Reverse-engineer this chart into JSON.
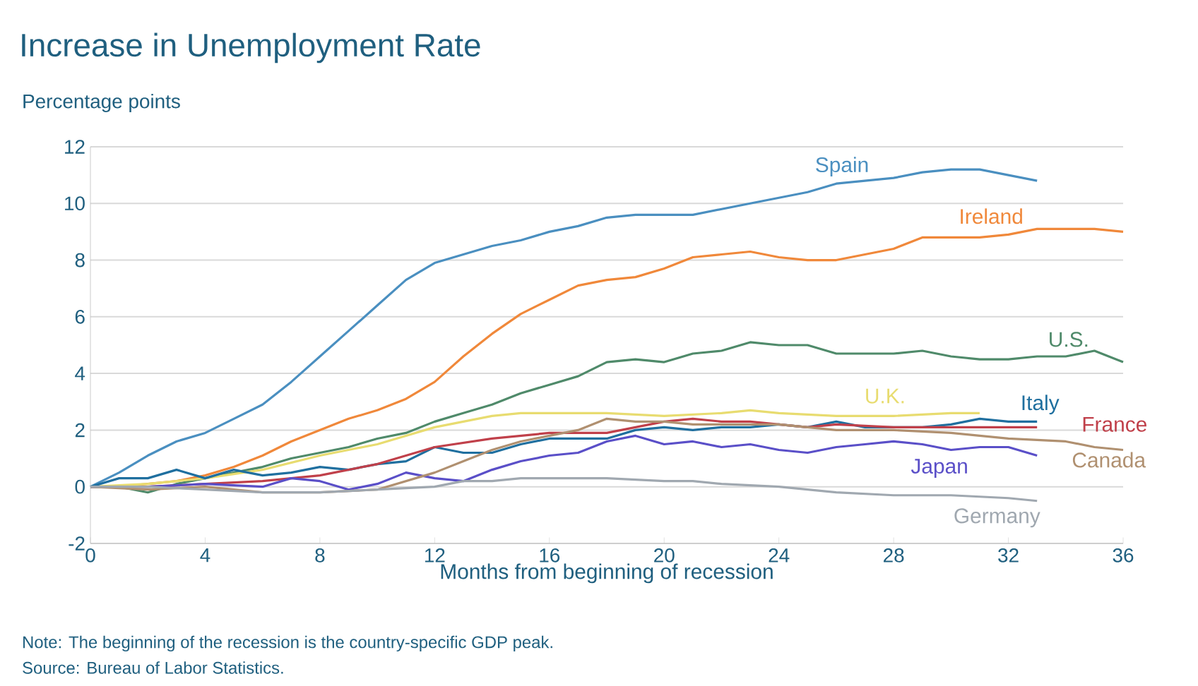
{
  "chart_data": {
    "type": "line",
    "title": "Increase in Unemployment Rate",
    "ylabel": "Percentage points",
    "xlabel": "Months from beginning of recession",
    "annotations": [
      "Note: The beginning of the recession is the country-specific GDP peak.",
      "Source: Bureau of Labor Statistics."
    ],
    "xlim": [
      0,
      36
    ],
    "xticks": [
      0,
      4,
      8,
      12,
      16,
      20,
      24,
      28,
      32,
      36
    ],
    "ylim": [
      -2,
      12
    ],
    "yticks": [
      -2,
      0,
      2,
      4,
      6,
      8,
      10,
      12
    ],
    "grid": "y",
    "marker": "none",
    "line_style": "solid",
    "series": [
      {
        "name": "Spain",
        "color": "#4a8fc0",
        "x": [
          0,
          1,
          2,
          3,
          4,
          5,
          6,
          7,
          8,
          9,
          10,
          11,
          12,
          13,
          14,
          15,
          16,
          17,
          18,
          19,
          20,
          21,
          22,
          23,
          24,
          25,
          26,
          27,
          28,
          29,
          30,
          31,
          32,
          33
        ],
        "values": [
          0,
          0.5,
          1.1,
          1.6,
          1.9,
          2.4,
          2.9,
          3.7,
          4.6,
          5.5,
          6.4,
          7.3,
          7.9,
          8.2,
          8.5,
          8.7,
          9.0,
          9.2,
          9.5,
          9.6,
          9.6,
          9.6,
          9.8,
          10.0,
          10.2,
          10.4,
          10.7,
          10.8,
          10.9,
          11.1,
          11.2,
          11.2,
          11.0,
          10.8
        ]
      },
      {
        "name": "Ireland",
        "color": "#f0883a",
        "x": [
          0,
          1,
          2,
          3,
          4,
          5,
          6,
          7,
          8,
          9,
          10,
          11,
          12,
          13,
          14,
          15,
          16,
          17,
          18,
          19,
          20,
          21,
          22,
          23,
          24,
          25,
          26,
          27,
          28,
          29,
          30,
          31,
          32,
          33,
          34,
          35,
          36
        ],
        "values": [
          0,
          0,
          0.1,
          0.2,
          0.4,
          0.7,
          1.1,
          1.6,
          2.0,
          2.4,
          2.7,
          3.1,
          3.7,
          4.6,
          5.4,
          6.1,
          6.6,
          7.1,
          7.3,
          7.4,
          7.7,
          8.1,
          8.2,
          8.3,
          8.1,
          8.0,
          8.0,
          8.2,
          8.4,
          8.8,
          8.8,
          8.8,
          8.9,
          9.1,
          9.1,
          9.1,
          9.0
        ]
      },
      {
        "name": "U.S.",
        "color": "#4f8a6a",
        "x": [
          0,
          1,
          2,
          3,
          4,
          5,
          6,
          7,
          8,
          9,
          10,
          11,
          12,
          13,
          14,
          15,
          16,
          17,
          18,
          19,
          20,
          21,
          22,
          23,
          24,
          25,
          26,
          27,
          28,
          29,
          30,
          31,
          32,
          33,
          34,
          35,
          36
        ],
        "values": [
          0,
          0,
          -0.2,
          0.1,
          0.3,
          0.5,
          0.7,
          1.0,
          1.2,
          1.4,
          1.7,
          1.9,
          2.3,
          2.6,
          2.9,
          3.3,
          3.6,
          3.9,
          4.4,
          4.5,
          4.4,
          4.7,
          4.8,
          5.1,
          5.0,
          5.0,
          4.7,
          4.7,
          4.7,
          4.8,
          4.6,
          4.5,
          4.5,
          4.6,
          4.6,
          4.8,
          4.4
        ]
      },
      {
        "name": "U.K.",
        "color": "#e8dc70",
        "x": [
          0,
          2,
          4,
          6,
          8,
          10,
          12,
          14,
          15,
          16,
          18,
          20,
          22,
          23,
          24,
          26,
          28,
          30,
          31
        ],
        "values": [
          0,
          0.1,
          0.3,
          0.6,
          1.1,
          1.5,
          2.1,
          2.5,
          2.6,
          2.6,
          2.6,
          2.5,
          2.6,
          2.7,
          2.6,
          2.5,
          2.5,
          2.6,
          2.6
        ]
      },
      {
        "name": "Italy",
        "color": "#1f6f9f",
        "x": [
          0,
          1,
          2,
          3,
          4,
          5,
          6,
          7,
          8,
          9,
          10,
          11,
          12,
          13,
          14,
          15,
          16,
          17,
          18,
          19,
          20,
          21,
          22,
          23,
          24,
          25,
          26,
          27,
          28,
          29,
          30,
          31,
          32,
          33
        ],
        "values": [
          0,
          0.3,
          0.3,
          0.6,
          0.3,
          0.6,
          0.4,
          0.5,
          0.7,
          0.6,
          0.8,
          0.9,
          1.4,
          1.2,
          1.2,
          1.5,
          1.7,
          1.7,
          1.7,
          2.0,
          2.1,
          2.0,
          2.1,
          2.1,
          2.2,
          2.1,
          2.3,
          2.1,
          2.1,
          2.1,
          2.2,
          2.4,
          2.3,
          2.3
        ]
      },
      {
        "name": "France",
        "color": "#c0404a",
        "x": [
          0,
          2,
          4,
          6,
          8,
          10,
          11,
          12,
          14,
          16,
          17,
          18,
          19,
          20,
          21,
          22,
          23,
          24,
          25,
          26,
          28,
          30,
          33
        ],
        "values": [
          0,
          0,
          0.1,
          0.2,
          0.4,
          0.8,
          1.1,
          1.4,
          1.7,
          1.9,
          1.9,
          1.9,
          2.1,
          2.3,
          2.4,
          2.3,
          2.3,
          2.2,
          2.1,
          2.2,
          2.1,
          2.1,
          2.1
        ]
      },
      {
        "name": "Japan",
        "color": "#5a4fc8",
        "x": [
          0,
          2,
          4,
          6,
          7,
          8,
          9,
          10,
          11,
          12,
          13,
          14,
          15,
          16,
          17,
          18,
          19,
          20,
          21,
          22,
          23,
          24,
          25,
          26,
          27,
          28,
          29,
          30,
          31,
          32,
          33
        ],
        "values": [
          0,
          0,
          0.1,
          0,
          0.3,
          0.2,
          -0.1,
          0.1,
          0.5,
          0.3,
          0.2,
          0.6,
          0.9,
          1.1,
          1.2,
          1.6,
          1.8,
          1.5,
          1.6,
          1.4,
          1.5,
          1.3,
          1.2,
          1.4,
          1.5,
          1.6,
          1.5,
          1.3,
          1.4,
          1.4,
          1.1
        ]
      },
      {
        "name": "Canada",
        "color": "#b09070",
        "x": [
          0,
          2,
          4,
          6,
          8,
          10,
          12,
          13,
          14,
          15,
          16,
          17,
          18,
          19,
          20,
          21,
          22,
          24,
          26,
          28,
          30,
          32,
          34,
          35,
          36
        ],
        "values": [
          0,
          -0.1,
          0,
          -0.2,
          -0.2,
          -0.1,
          0.5,
          0.9,
          1.3,
          1.6,
          1.8,
          2.0,
          2.4,
          2.3,
          2.3,
          2.2,
          2.2,
          2.2,
          2.0,
          2.0,
          1.9,
          1.7,
          1.6,
          1.4,
          1.3
        ]
      },
      {
        "name": "Germany",
        "color": "#a0a8b0",
        "x": [
          0,
          2,
          4,
          6,
          8,
          10,
          12,
          13,
          14,
          15,
          16,
          18,
          20,
          21,
          22,
          24,
          26,
          28,
          30,
          32,
          33
        ],
        "values": [
          0,
          0,
          -0.1,
          -0.2,
          -0.2,
          -0.1,
          0,
          0.2,
          0.2,
          0.3,
          0.3,
          0.3,
          0.2,
          0.2,
          0.1,
          0,
          -0.2,
          -0.3,
          -0.3,
          -0.4,
          -0.5
        ]
      }
    ]
  }
}
